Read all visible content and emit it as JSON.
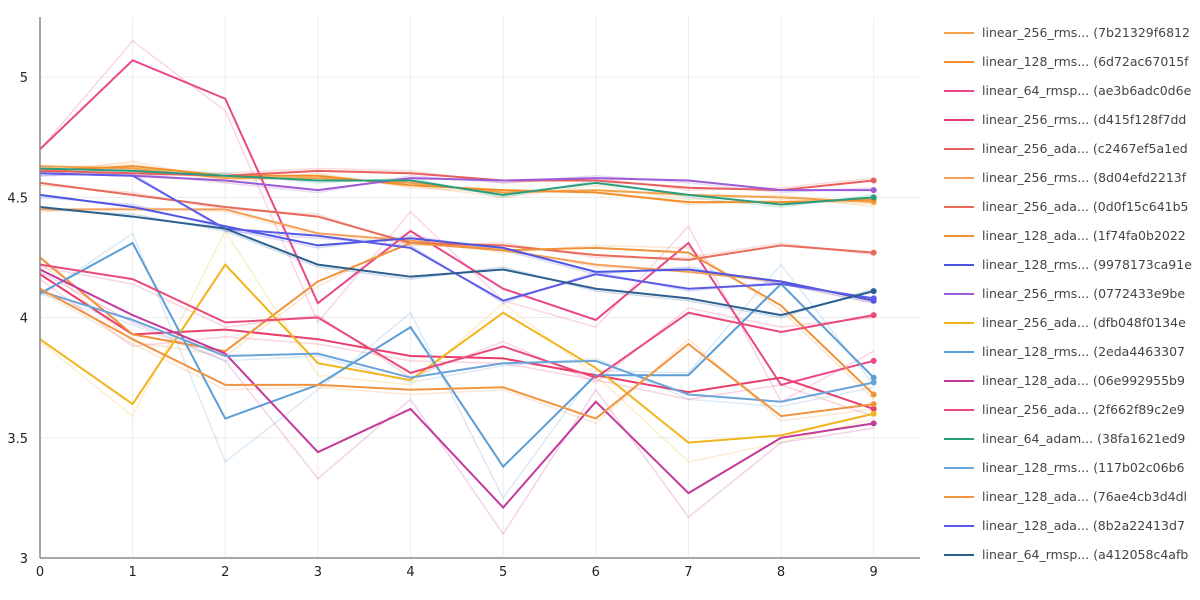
{
  "chart_data": {
    "type": "line",
    "title": "",
    "xlabel": "",
    "ylabel": "",
    "x": [
      0,
      1,
      2,
      3,
      4,
      5,
      6,
      7,
      8,
      9
    ],
    "xlim": [
      0,
      9.5
    ],
    "ylim": [
      3,
      5.25
    ],
    "x_ticks": [
      "0",
      "1",
      "2",
      "3",
      "4",
      "5",
      "6",
      "7",
      "8",
      "9"
    ],
    "y_ticks": [
      "3",
      "3.5",
      "4",
      "4.5",
      "5"
    ],
    "y_tick_values": [
      3,
      3.5,
      4,
      4.5,
      5
    ],
    "grid": true,
    "legend_position": "right",
    "series": [
      {
        "name": "linear_256_rms... (7b21329f6812",
        "color": "#f4a24a",
        "values": [
          4.63,
          4.62,
          4.58,
          4.58,
          4.56,
          4.52,
          4.53,
          4.51,
          4.5,
          4.48
        ],
        "raw": [
          4.62,
          4.64,
          4.56,
          4.59,
          4.55,
          4.5,
          4.55,
          4.49,
          4.51,
          4.46
        ]
      },
      {
        "name": "linear_128_rms... (6d72ac67015f",
        "color": "#f28e2b",
        "values": [
          4.61,
          4.63,
          4.59,
          4.59,
          4.55,
          4.53,
          4.52,
          4.48,
          4.48,
          4.49
        ],
        "raw": [
          4.6,
          4.65,
          4.57,
          4.6,
          4.54,
          4.52,
          4.53,
          4.47,
          4.49,
          4.47
        ]
      },
      {
        "name": "linear_64_rmsp... (ae3b6adc0d6e",
        "color": "#e8488a",
        "values": [
          4.7,
          5.07,
          4.91,
          4.06,
          4.36,
          4.12,
          3.99,
          4.31,
          3.72,
          3.82
        ],
        "raw": [
          4.7,
          5.15,
          4.86,
          3.98,
          4.44,
          4.07,
          3.96,
          4.38,
          3.65,
          3.86
        ]
      },
      {
        "name": "linear_256_rms... (d415f128f7dd",
        "color": "#e83e6c",
        "values": [
          4.18,
          3.93,
          3.95,
          3.91,
          3.84,
          3.83,
          3.76,
          3.69,
          3.75,
          3.62
        ],
        "raw": [
          4.16,
          3.88,
          3.92,
          3.89,
          3.82,
          3.81,
          3.74,
          3.66,
          3.72,
          3.59
        ]
      },
      {
        "name": "linear_256_ada... (c2467ef5a1ed",
        "color": "#e8605e",
        "values": [
          4.61,
          4.6,
          4.59,
          4.61,
          4.6,
          4.57,
          4.57,
          4.54,
          4.53,
          4.57
        ],
        "raw": [
          4.6,
          4.59,
          4.6,
          4.62,
          4.61,
          4.56,
          4.58,
          4.53,
          4.54,
          4.58
        ]
      },
      {
        "name": "linear_256_rms... (8d04efd2213f",
        "color": "#f5a05a",
        "values": [
          4.45,
          4.45,
          4.45,
          4.35,
          4.32,
          4.28,
          4.22,
          4.19,
          4.15,
          4.07
        ],
        "raw": [
          4.44,
          4.46,
          4.44,
          4.34,
          4.31,
          4.29,
          4.21,
          4.2,
          4.14,
          4.06
        ]
      },
      {
        "name": "linear_256_ada... (0d0f15c641b5",
        "color": "#e86a5a",
        "values": [
          4.56,
          4.51,
          4.46,
          4.42,
          4.31,
          4.3,
          4.26,
          4.24,
          4.3,
          4.27
        ],
        "raw": [
          4.55,
          4.52,
          4.45,
          4.43,
          4.3,
          4.31,
          4.25,
          4.25,
          4.31,
          4.26
        ]
      },
      {
        "name": "linear_128_ada... (1f74fa0b2022",
        "color": "#f0923a",
        "values": [
          4.25,
          3.93,
          3.86,
          4.15,
          4.31,
          4.28,
          4.29,
          4.27,
          4.05,
          3.68
        ],
        "raw": [
          4.23,
          3.9,
          3.84,
          4.13,
          4.33,
          4.27,
          4.3,
          4.29,
          4.03,
          3.66
        ]
      },
      {
        "name": "linear_128_rms... (9978173ca91e",
        "color": "#4e55e0",
        "values": [
          4.51,
          4.46,
          4.38,
          4.3,
          4.33,
          4.29,
          4.19,
          4.2,
          4.15,
          4.07
        ],
        "raw": [
          4.5,
          4.47,
          4.37,
          4.29,
          4.34,
          4.28,
          4.18,
          4.21,
          4.14,
          4.06
        ]
      },
      {
        "name": "linear_256_rms... (0772433e9be",
        "color": "#9b5bd6",
        "values": [
          4.6,
          4.59,
          4.57,
          4.53,
          4.58,
          4.57,
          4.58,
          4.57,
          4.53,
          4.53
        ],
        "raw": [
          4.59,
          4.6,
          4.56,
          4.52,
          4.59,
          4.56,
          4.59,
          4.56,
          4.52,
          4.54
        ]
      },
      {
        "name": "linear_256_ada... (dfb048f0134e",
        "color": "#f2b41c",
        "values": [
          3.91,
          3.64,
          4.22,
          3.81,
          3.74,
          4.02,
          3.79,
          3.48,
          3.51,
          3.6
        ],
        "raw": [
          3.9,
          3.59,
          4.36,
          3.76,
          3.72,
          4.06,
          3.76,
          3.4,
          3.48,
          3.58
        ]
      },
      {
        "name": "linear_128_rms... (2eda4463307",
        "color": "#5b9ed6",
        "values": [
          4.1,
          4.31,
          3.58,
          3.72,
          3.96,
          3.38,
          3.76,
          3.76,
          4.14,
          3.75
        ],
        "raw": [
          4.09,
          4.35,
          3.4,
          3.7,
          4.02,
          3.25,
          3.78,
          3.77,
          4.22,
          3.72
        ]
      },
      {
        "name": "linear_128_ada... (06e992955b9",
        "color": "#c4389a",
        "values": [
          4.2,
          4.01,
          3.85,
          3.44,
          3.62,
          3.21,
          3.65,
          3.27,
          3.5,
          3.56
        ],
        "raw": [
          4.19,
          3.98,
          3.82,
          3.33,
          3.66,
          3.1,
          3.7,
          3.17,
          3.48,
          3.54
        ]
      },
      {
        "name": "linear_256_ada... (2f662f89c2e9",
        "color": "#ea4a78",
        "values": [
          4.22,
          4.16,
          3.98,
          4.0,
          3.77,
          3.88,
          3.75,
          4.02,
          3.94,
          4.01
        ],
        "raw": [
          4.21,
          4.14,
          3.96,
          4.01,
          3.75,
          3.9,
          3.73,
          4.04,
          3.96,
          4.0
        ]
      },
      {
        "name": "linear_64_adam... (38fa1621ed9",
        "color": "#2a9d7f",
        "values": [
          4.62,
          4.61,
          4.59,
          4.57,
          4.57,
          4.51,
          4.56,
          4.51,
          4.47,
          4.5
        ],
        "raw": [
          4.61,
          4.62,
          4.6,
          4.56,
          4.58,
          4.5,
          4.57,
          4.5,
          4.46,
          4.51
        ]
      },
      {
        "name": "linear_128_rms... (117b02c06b6",
        "color": "#6aa4da",
        "values": [
          4.11,
          3.99,
          3.84,
          3.85,
          3.75,
          3.81,
          3.82,
          3.68,
          3.65,
          3.73
        ],
        "raw": [
          4.1,
          3.97,
          3.82,
          3.84,
          3.73,
          3.8,
          3.83,
          3.66,
          3.63,
          3.71
        ]
      },
      {
        "name": "linear_128_ada... (76ae4cb3d4dl",
        "color": "#f09440",
        "values": [
          4.12,
          3.91,
          3.72,
          3.72,
          3.7,
          3.71,
          3.58,
          3.89,
          3.59,
          3.64
        ],
        "raw": [
          4.11,
          3.89,
          3.7,
          3.71,
          3.68,
          3.7,
          3.56,
          3.91,
          3.57,
          3.62
        ]
      },
      {
        "name": "linear_128_ada... (8b2a22413d7",
        "color": "#5b5be8",
        "values": [
          4.6,
          4.59,
          4.37,
          4.34,
          4.29,
          4.07,
          4.18,
          4.12,
          4.14,
          4.08
        ],
        "raw": [
          4.59,
          4.6,
          4.36,
          4.33,
          4.3,
          4.06,
          4.19,
          4.11,
          4.15,
          4.07
        ]
      },
      {
        "name": "linear_64_rmsp... (a412058c4afb",
        "color": "#2b5f8f",
        "values": [
          4.46,
          4.42,
          4.37,
          4.22,
          4.17,
          4.2,
          4.12,
          4.08,
          4.01,
          4.11
        ],
        "raw": [
          4.45,
          4.43,
          4.36,
          4.21,
          4.16,
          4.21,
          4.11,
          4.07,
          4.0,
          4.12
        ]
      }
    ]
  }
}
